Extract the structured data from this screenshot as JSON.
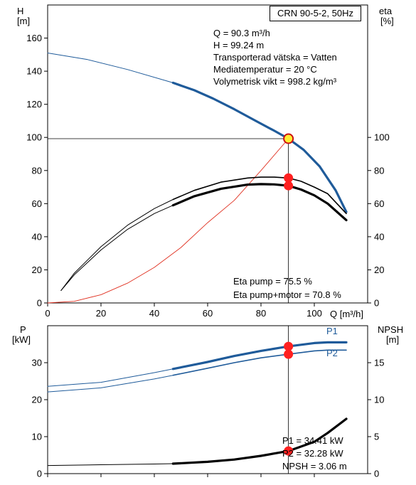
{
  "pump_title": "CRN 90-5-2, 50Hz",
  "duty_info": [
    "Q = 90.3 m³/h",
    "H = 99.24 m",
    "Transporterad vätska = Vatten",
    "Mediatemperatur = 20 °C",
    "Volymetrisk vikt = 998.2 kg/m³"
  ],
  "efficiency_info": [
    "Eta pump = 75.5 %",
    "Eta pump+motor = 70.8 %"
  ],
  "power_info": [
    "P1 = 34.41 kW",
    "P2 = 32.28 kW",
    "NPSH = 3.06 m"
  ],
  "axis_labels": {
    "head_symbol": "H",
    "head_unit": "[m]",
    "eta_symbol": "eta",
    "eta_unit": "[%]",
    "flow": "Q [m³/h]",
    "power_symbol": "P",
    "power_unit": "[kW]",
    "npsh_symbol": "NPSH",
    "npsh_unit": "[m]",
    "p1_tag": "P1",
    "p2_tag": "P2"
  },
  "colors": {
    "pump_curve": "#1f5b9a",
    "efficiency_curves": "#000000",
    "system_curve": "#e03020",
    "duty_point": "#ff2020",
    "duty_point_fill_head": "#ffee33"
  },
  "chart_data": [
    {
      "type": "line",
      "title": "",
      "xlabel": "Q [m³/h]",
      "ylabel": "H [m]",
      "y2label": "eta [%]",
      "xlim": [
        0,
        120
      ],
      "ylim": [
        0,
        180
      ],
      "y2lim": [
        0,
        180
      ],
      "xticks": [
        0,
        20,
        40,
        60,
        80,
        100
      ],
      "yticks": [
        0,
        20,
        40,
        60,
        80,
        100,
        120,
        140,
        160
      ],
      "y2ticks": [
        0,
        20,
        40,
        60,
        80,
        100
      ],
      "grid": false,
      "series": [
        {
          "axis": "left",
          "style": "thin-extended",
          "x": [
            0,
            15,
            30,
            47
          ],
          "y": [
            151,
            147,
            141,
            133
          ]
        },
        {
          "axis": "left",
          "style": "thick-operating",
          "x": [
            47,
            55,
            62,
            70,
            78,
            85,
            90.3,
            96,
            102,
            108,
            112
          ],
          "y": [
            133,
            128.5,
            123.5,
            117,
            110,
            104,
            99.24,
            92.5,
            82.5,
            68,
            55
          ]
        },
        {
          "axis": "left",
          "style": "system-curve",
          "x": [
            0,
            10,
            20,
            30,
            40,
            50,
            60,
            70,
            80,
            90.3
          ],
          "y": [
            0,
            1,
            5,
            12,
            21.5,
            33.5,
            48.5,
            62,
            80,
            99.24
          ]
        },
        {
          "axis": "right",
          "style": "thin-extended",
          "x": [
            5,
            10,
            20,
            30,
            40,
            47
          ],
          "y": [
            7.5,
            18,
            34,
            47,
            57,
            62.5
          ]
        },
        {
          "axis": "right",
          "style": "thick-operating",
          "x": [
            47,
            55,
            65,
            75,
            80,
            85,
            90.3,
            95,
            100,
            105,
            112
          ],
          "y": [
            62.5,
            68,
            73,
            75.5,
            76,
            76,
            75.5,
            73.5,
            70,
            66,
            54
          ]
        },
        {
          "axis": "right",
          "style": "thin-extended",
          "x": [
            5,
            10,
            20,
            30,
            40,
            47
          ],
          "y": [
            7.5,
            17,
            32,
            44.5,
            54,
            59
          ]
        },
        {
          "axis": "right",
          "style": "thick-operating",
          "x": [
            47,
            55,
            65,
            75,
            80,
            85,
            90.3,
            95,
            100,
            105,
            112
          ],
          "y": [
            59,
            64.5,
            69,
            71.5,
            71.8,
            71.6,
            70.8,
            68.5,
            65,
            60,
            50
          ]
        }
      ],
      "duty_points": [
        {
          "axis": "left",
          "x": 90.3,
          "y": 99.24
        },
        {
          "axis": "right",
          "x": 90.3,
          "y": 75.5
        },
        {
          "axis": "right",
          "x": 90.3,
          "y": 70.8
        }
      ]
    },
    {
      "type": "line",
      "title": "",
      "ylabel": "P [kW]",
      "y2label": "NPSH [m]",
      "xlim": [
        0,
        120
      ],
      "ylim": [
        0,
        40
      ],
      "y2lim": [
        0,
        20
      ],
      "yticks": [
        0,
        10,
        20,
        30
      ],
      "y2ticks": [
        0,
        5,
        10,
        15
      ],
      "grid": false,
      "series": [
        {
          "name": "P1",
          "axis": "left",
          "style": "thin-extended",
          "x": [
            0,
            20,
            40,
            47
          ],
          "y": [
            23.6,
            24.7,
            27.3,
            28.3
          ]
        },
        {
          "name": "P1",
          "axis": "left",
          "style": "thick-operating",
          "x": [
            47,
            60,
            70,
            80,
            90.3,
            100,
            105,
            112
          ],
          "y": [
            28.3,
            30.2,
            31.8,
            33.2,
            34.41,
            35.3,
            35.5,
            35.5
          ]
        },
        {
          "name": "P2",
          "axis": "left",
          "style": "thin-extended",
          "x": [
            0,
            20,
            40,
            47
          ],
          "y": [
            22.1,
            23.2,
            25.6,
            26.6
          ]
        },
        {
          "name": "P2",
          "axis": "left",
          "style": "thick-operating",
          "x": [
            47,
            60,
            70,
            80,
            90.3,
            100,
            105,
            112
          ],
          "y": [
            26.6,
            28.5,
            30,
            31.3,
            32.28,
            33.2,
            33.4,
            33.4
          ]
        },
        {
          "axis": "right",
          "style": "thin-extended",
          "x": [
            0,
            20,
            40,
            47
          ],
          "y": [
            1.1,
            1.2,
            1.3,
            1.35
          ]
        },
        {
          "axis": "right",
          "style": "thick-operating",
          "x": [
            47,
            60,
            70,
            80,
            90.3,
            100,
            105,
            112
          ],
          "y": [
            1.35,
            1.6,
            1.9,
            2.4,
            3.06,
            4.3,
            5.5,
            7.4
          ]
        }
      ],
      "duty_points": [
        {
          "axis": "left",
          "x": 90.3,
          "y": 34.41
        },
        {
          "axis": "left",
          "x": 90.3,
          "y": 32.28
        },
        {
          "axis": "right",
          "x": 90.3,
          "y": 3.06
        }
      ]
    }
  ]
}
